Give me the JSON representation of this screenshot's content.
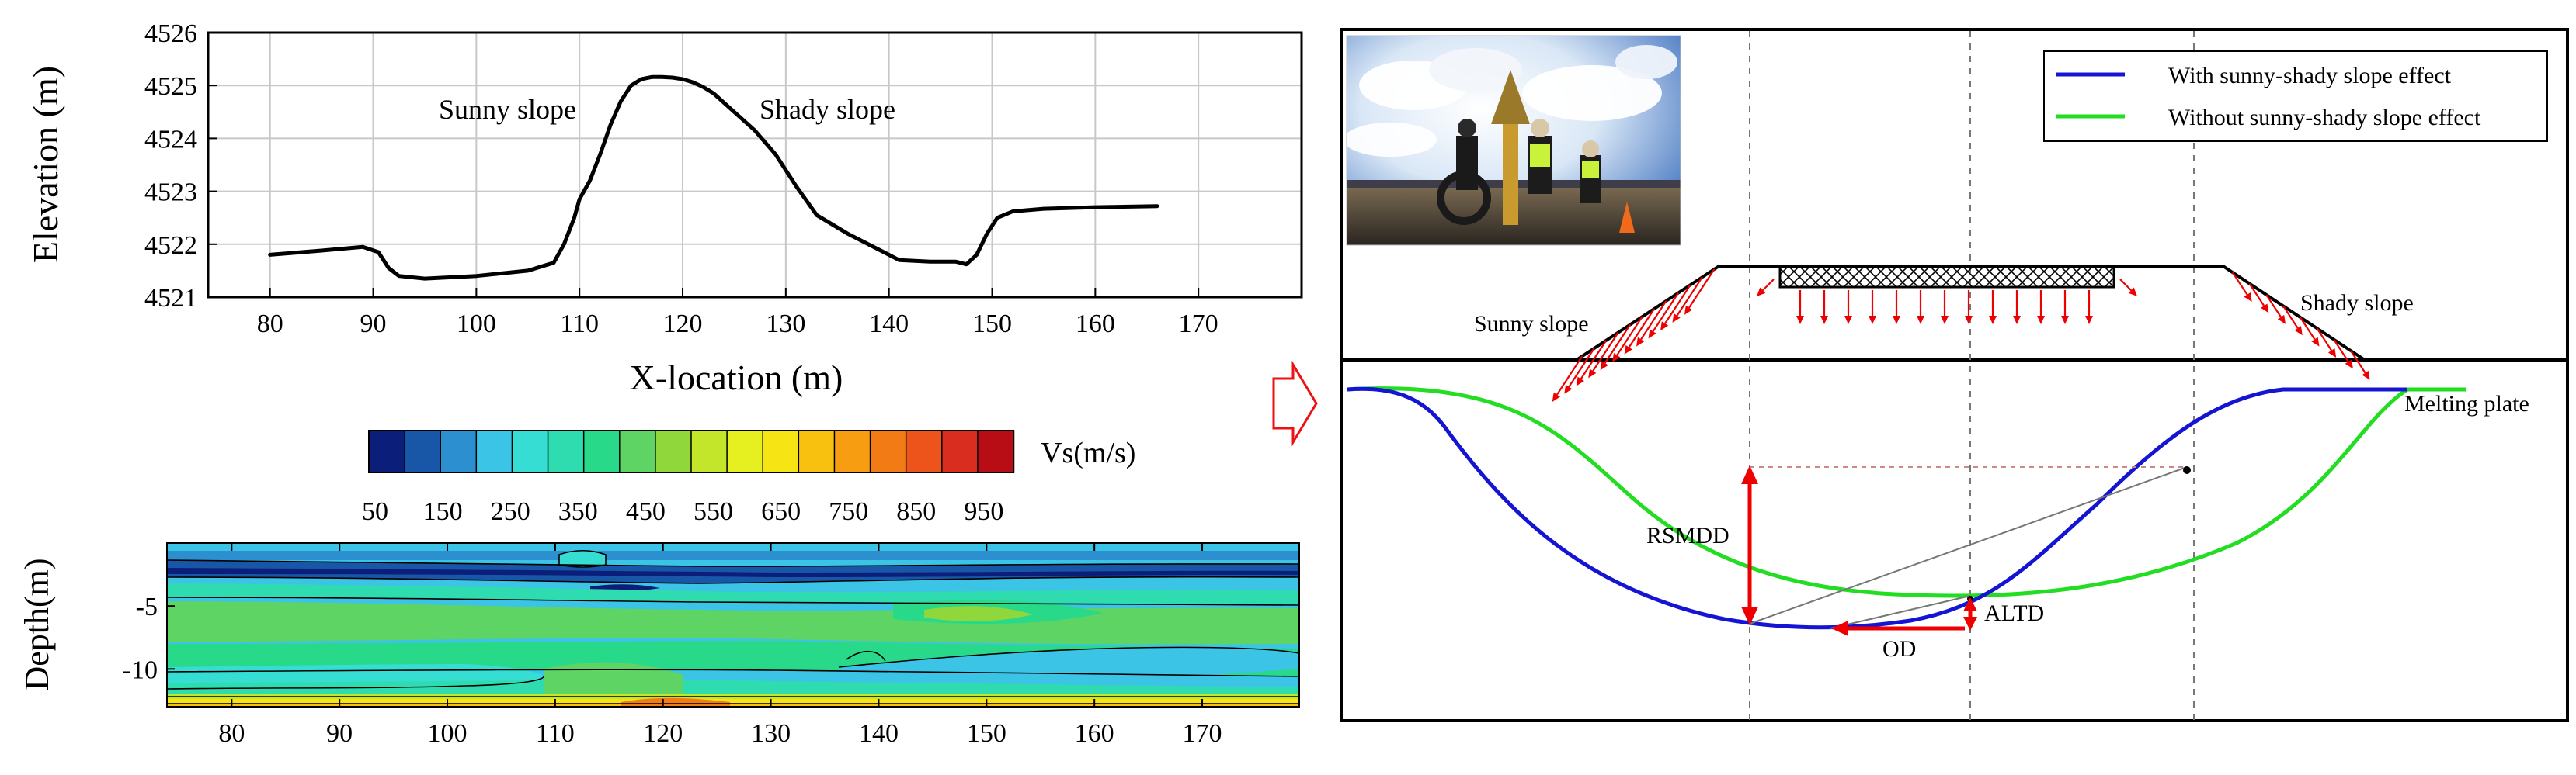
{
  "chart_data": [
    {
      "type": "line",
      "title": "",
      "xlabel": "X-location (m)",
      "ylabel": "Elevation (m)",
      "xlim": [
        74,
        180
      ],
      "ylim": [
        4521,
        4526
      ],
      "x_ticks": [
        80,
        90,
        100,
        110,
        120,
        130,
        140,
        150,
        160,
        170
      ],
      "y_ticks": [
        4521,
        4522,
        4523,
        4524,
        4525,
        4526
      ],
      "grid": true,
      "series": [
        {
          "name": "",
          "x": [
            80,
            85,
            89,
            90.5,
            91.5,
            92.5,
            95,
            100,
            105,
            107.5,
            108.5,
            109.5,
            110,
            111,
            112,
            113,
            114,
            115,
            116,
            117,
            118,
            119,
            120,
            121,
            122,
            123,
            125,
            127,
            129,
            131,
            133,
            136,
            139,
            141,
            144,
            146.5,
            147.5,
            148.5,
            149.5,
            150.5,
            152,
            155,
            160,
            166
          ],
          "y": [
            4521.8,
            4521.88,
            4521.95,
            4521.85,
            4521.55,
            4521.4,
            4521.35,
            4521.4,
            4521.5,
            4521.65,
            4522.0,
            4522.5,
            4522.85,
            4523.2,
            4523.7,
            4524.25,
            4524.7,
            4525.0,
            4525.12,
            4525.16,
            4525.16,
            4525.15,
            4525.12,
            4525.06,
            4524.97,
            4524.85,
            4524.5,
            4524.15,
            4523.7,
            4523.1,
            4522.55,
            4522.2,
            4521.9,
            4521.7,
            4521.67,
            4521.67,
            4521.62,
            4521.8,
            4522.2,
            4522.5,
            4522.62,
            4522.67,
            4522.7,
            4522.72
          ],
          "color": "#000000"
        }
      ],
      "annotations": [
        "Sunny slope",
        "Shady slope"
      ]
    },
    {
      "type": "heatmap",
      "title": "",
      "xlabel": "",
      "ylabel": "Depth(m)",
      "xlim": [
        74,
        179
      ],
      "ylim": [
        -13,
        0
      ],
      "x_ticks": [
        80,
        90,
        100,
        110,
        120,
        130,
        140,
        150,
        160,
        170
      ],
      "y_ticks": [
        -5,
        -10
      ],
      "colorbar": {
        "label": "Vs(m/s)",
        "tick_labels": [
          "50",
          "150",
          "250",
          "350",
          "450",
          "550",
          "650",
          "750",
          "850",
          "950"
        ],
        "colors": [
          "#0b1f7a",
          "#1856a8",
          "#2c8fcf",
          "#3bc4e6",
          "#35ddd2",
          "#2fdcb0",
          "#28d98a",
          "#5ed465",
          "#8fd73b",
          "#c4e62a",
          "#e6ef1f",
          "#f7e414",
          "#f8c10f",
          "#f79d12",
          "#f37b16",
          "#ec541b",
          "#d92d1f",
          "#b80d15"
        ]
      }
    },
    {
      "type": "diagram",
      "title": "",
      "legend_position": "top-right",
      "series": [
        {
          "name": "With sunny-shady slope effect",
          "color": "#1414d2"
        },
        {
          "name": "Without sunny-shady slope effect",
          "color": "#22dd22"
        }
      ],
      "annotations": [
        "Sunny slope",
        "Shady slope",
        "Melting plate",
        "RSMDD",
        "ALTD",
        "OD"
      ]
    }
  ]
}
